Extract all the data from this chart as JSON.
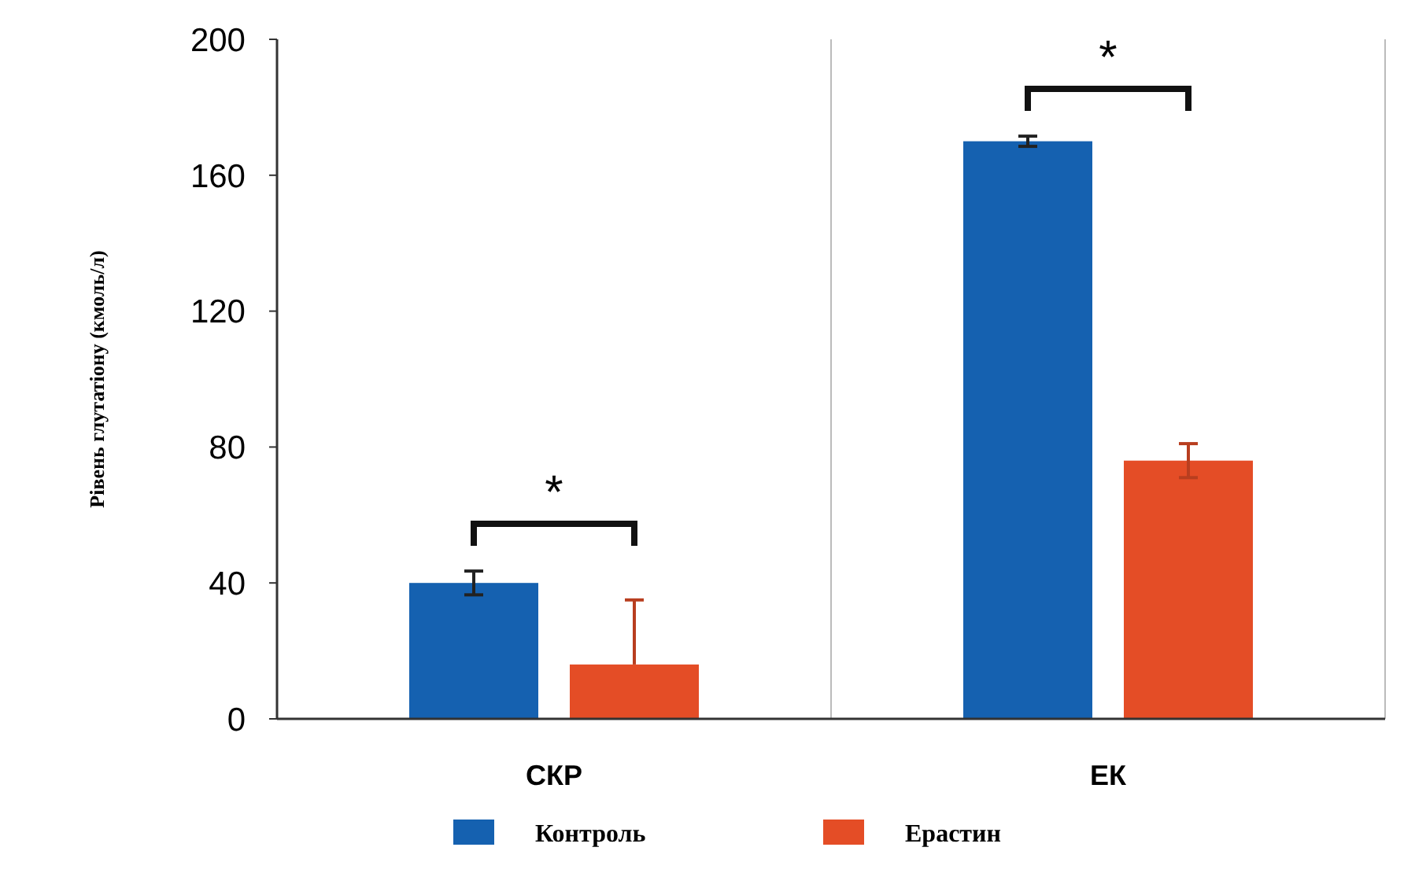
{
  "chart_data": {
    "type": "bar",
    "ylabel": "Рівень глутатіону (кмоль/л)",
    "categories": [
      "СКР",
      "ЕК"
    ],
    "series": [
      {
        "name": "Контроль",
        "color": "#1561b0",
        "values": [
          40,
          170
        ],
        "errors": [
          3.5,
          1.5
        ]
      },
      {
        "name": "Ерастин",
        "color": "#e44d26",
        "values": [
          16,
          76
        ],
        "errors": [
          [
            16,
            35
          ],
          5
        ]
      }
    ],
    "ylim": [
      0,
      200
    ],
    "yticks": [
      0,
      40,
      80,
      120,
      160,
      200
    ],
    "grid": false,
    "legend": "bottom",
    "annotations": [
      "*",
      "*"
    ]
  }
}
